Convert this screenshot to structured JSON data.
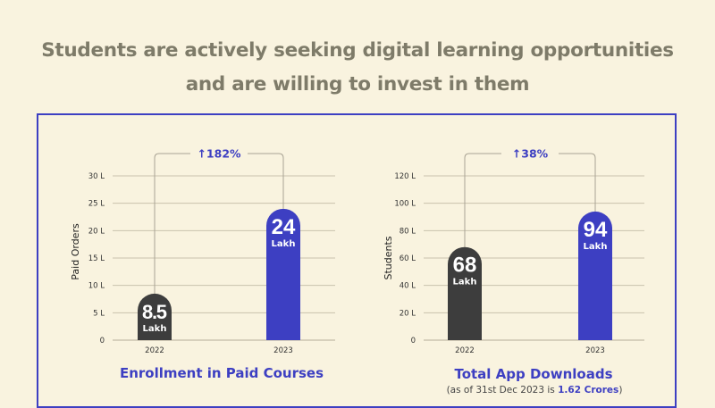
{
  "headline": {
    "line1": "Students are actively seeking digital learning opportunities",
    "line2": "and are willing to invest in them"
  },
  "colors": {
    "accent": "#3d3fc2",
    "dark_bar": "#3d3d3d",
    "background": "#f9f3df",
    "headline": "#7e7b69"
  },
  "chart_data": [
    {
      "type": "bar",
      "title": "Enrollment in Paid Courses",
      "ylabel": "Paid Orders",
      "categories": [
        "2022",
        "2023"
      ],
      "values": [
        8.5,
        24
      ],
      "value_labels": [
        "8.5",
        "24"
      ],
      "value_unit": "Lakh",
      "yticks": [
        "0",
        "5 L",
        "10 L",
        "15 L",
        "20 L",
        "25 L",
        "30 L"
      ],
      "ylim": [
        0,
        30
      ],
      "growth": "182%",
      "grid": true
    },
    {
      "type": "bar",
      "title": "Total App Downloads",
      "ylabel": "Students",
      "categories": [
        "2022",
        "2023"
      ],
      "values": [
        68,
        94
      ],
      "value_labels": [
        "68",
        "94"
      ],
      "value_unit": "Lakh",
      "yticks": [
        "0",
        "20 L",
        "40 L",
        "60 L",
        "80 L",
        "100 L",
        "120 L"
      ],
      "ylim": [
        0,
        120
      ],
      "growth": "38%",
      "note_prefix": "(as of 31st Dec 2023 is ",
      "note_value": "1.62 Crores",
      "note_suffix": ")",
      "grid": true
    }
  ]
}
